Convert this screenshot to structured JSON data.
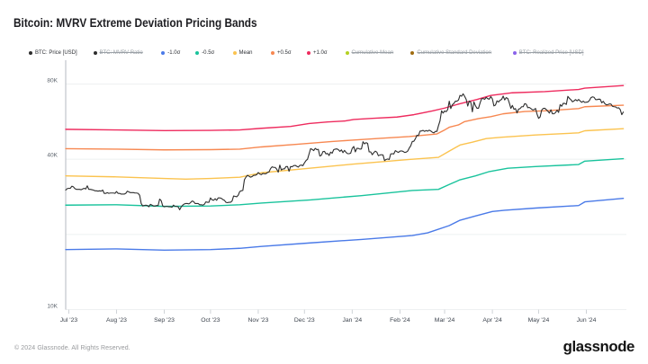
{
  "header": {
    "title": "Bitcoin: MVRV Extreme Deviation Pricing Bands"
  },
  "legend": {
    "items": [
      {
        "label": "BTC: Price [USD]",
        "color": "#2d2d2d",
        "active": true
      },
      {
        "label": "BTC: MVRV Ratio",
        "color": "#2d2d2d",
        "active": false
      },
      {
        "label": "-1.0σ",
        "color": "#4a7ae8",
        "active": true
      },
      {
        "label": "-0.5σ",
        "color": "#19c39c",
        "active": true
      },
      {
        "label": "Mean",
        "color": "#fbc34f",
        "active": true
      },
      {
        "label": "+0.5σ",
        "color": "#f78851",
        "active": true
      },
      {
        "label": "+1.0σ",
        "color": "#ee2b5e",
        "active": true
      },
      {
        "label": "Cumulative Mean",
        "color": "#b4d122",
        "active": false
      },
      {
        "label": "Cumulative Standard Deviation",
        "color": "#a06c10",
        "active": false
      },
      {
        "label": "BTC: Realized Price [USD]",
        "color": "#8a63ea",
        "active": false
      }
    ]
  },
  "footer": {
    "copyright": "© 2024 Glassnode. All Rights Reserved.",
    "brand": "glassnode"
  },
  "chart_data": {
    "type": "line",
    "title": "Bitcoin: MVRV Extreme Deviation Pricing Bands",
    "y_axis": {
      "scale": "log",
      "unit": "USD thousands",
      "ticks": [
        {
          "v": 80,
          "label": "80K"
        },
        {
          "v": 40,
          "label": "40K"
        },
        {
          "v": 10,
          "label": "10K"
        }
      ],
      "gridlines": [
        80,
        40,
        20,
        10
      ],
      "range": [
        10,
        86
      ]
    },
    "x_axis": {
      "start": "2023-06-29",
      "end": "2024-06-27",
      "month_labels": [
        {
          "d": "2023-07-01",
          "label": "Jul '23"
        },
        {
          "d": "2023-08-01",
          "label": "Aug '23"
        },
        {
          "d": "2023-09-01",
          "label": "Sep '23"
        },
        {
          "d": "2023-10-01",
          "label": "Oct '23"
        },
        {
          "d": "2023-11-01",
          "label": "Nov '23"
        },
        {
          "d": "2023-12-01",
          "label": "Dec '23"
        },
        {
          "d": "2024-01-01",
          "label": "Jan '24"
        },
        {
          "d": "2024-02-01",
          "label": "Feb '24"
        },
        {
          "d": "2024-03-01",
          "label": "Mar '24"
        },
        {
          "d": "2024-04-01",
          "label": "Apr '24"
        },
        {
          "d": "2024-05-01",
          "label": "May '24"
        },
        {
          "d": "2024-06-01",
          "label": "Jun '24"
        }
      ]
    },
    "series": [
      {
        "name": "+1.0σ",
        "color": "#ee2b5e",
        "width": 1.4,
        "points": [
          [
            "2023-06-29",
            52.7
          ],
          [
            "2023-08-01",
            52.4
          ],
          [
            "2023-09-01",
            52.1
          ],
          [
            "2023-10-01",
            52.2
          ],
          [
            "2023-10-20",
            52.4
          ],
          [
            "2023-11-03",
            53.2
          ],
          [
            "2023-11-22",
            54.1
          ],
          [
            "2023-12-04",
            55.6
          ],
          [
            "2023-12-16",
            56.4
          ],
          [
            "2023-12-27",
            56.9
          ],
          [
            "2024-01-02",
            57.7
          ],
          [
            "2024-01-14",
            58.3
          ],
          [
            "2024-01-30",
            59.0
          ],
          [
            "2024-02-10",
            60.3
          ],
          [
            "2024-02-22",
            62.4
          ],
          [
            "2024-03-01",
            64.1
          ],
          [
            "2024-03-10",
            66.5
          ],
          [
            "2024-03-22",
            69.4
          ],
          [
            "2024-03-31",
            72.0
          ],
          [
            "2024-04-14",
            73.8
          ],
          [
            "2024-05-05",
            74.6
          ],
          [
            "2024-05-27",
            76.1
          ],
          [
            "2024-05-31",
            77.0
          ],
          [
            "2024-06-25",
            78.9
          ]
        ]
      },
      {
        "name": "+0.5σ",
        "color": "#f78851",
        "width": 1.4,
        "points": [
          [
            "2023-06-29",
            44.1
          ],
          [
            "2023-08-01",
            43.9
          ],
          [
            "2023-09-01",
            43.6
          ],
          [
            "2023-10-01",
            43.7
          ],
          [
            "2023-10-20",
            43.9
          ],
          [
            "2023-11-03",
            44.8
          ],
          [
            "2023-11-26",
            45.9
          ],
          [
            "2023-12-19",
            47.1
          ],
          [
            "2024-01-01",
            47.7
          ],
          [
            "2024-01-19",
            48.5
          ],
          [
            "2024-02-07",
            49.3
          ],
          [
            "2024-02-25",
            50.5
          ],
          [
            "2024-03-01",
            52.4
          ],
          [
            "2024-03-04",
            53.7
          ],
          [
            "2024-03-10",
            54.9
          ],
          [
            "2024-03-14",
            56.6
          ],
          [
            "2024-03-23",
            58.2
          ],
          [
            "2024-03-31",
            59.2
          ],
          [
            "2024-04-08",
            60.8
          ],
          [
            "2024-04-22",
            62.1
          ],
          [
            "2024-05-05",
            62.5
          ],
          [
            "2024-05-27",
            63.8
          ],
          [
            "2024-05-31",
            64.9
          ],
          [
            "2024-06-25",
            65.8
          ]
        ]
      },
      {
        "name": "Mean",
        "color": "#fbc34f",
        "width": 1.4,
        "points": [
          [
            "2023-06-29",
            34.3
          ],
          [
            "2023-08-01",
            34.0
          ],
          [
            "2023-09-01",
            33.5
          ],
          [
            "2023-09-15",
            33.3
          ],
          [
            "2023-10-01",
            33.5
          ],
          [
            "2023-10-20",
            33.9
          ],
          [
            "2023-11-03",
            35.3
          ],
          [
            "2023-12-02",
            36.7
          ],
          [
            "2024-01-01",
            38.2
          ],
          [
            "2024-02-07",
            39.9
          ],
          [
            "2024-02-26",
            40.7
          ],
          [
            "2024-03-04",
            43.1
          ],
          [
            "2024-03-11",
            45.6
          ],
          [
            "2024-03-19",
            46.8
          ],
          [
            "2024-03-28",
            48.4
          ],
          [
            "2024-04-07",
            49.0
          ],
          [
            "2024-04-29",
            50.0
          ],
          [
            "2024-05-27",
            51.0
          ],
          [
            "2024-05-31",
            52.0
          ],
          [
            "2024-06-25",
            53.0
          ]
        ]
      },
      {
        "name": "-0.5σ",
        "color": "#19c39c",
        "width": 1.4,
        "points": [
          [
            "2023-06-29",
            26.2
          ],
          [
            "2023-08-01",
            26.3
          ],
          [
            "2023-09-01",
            25.9
          ],
          [
            "2023-10-01",
            26.0
          ],
          [
            "2023-10-20",
            26.3
          ],
          [
            "2023-11-03",
            26.7
          ],
          [
            "2023-12-05",
            27.5
          ],
          [
            "2024-01-07",
            28.6
          ],
          [
            "2024-02-09",
            30.0
          ],
          [
            "2024-02-26",
            30.3
          ],
          [
            "2024-03-04",
            31.7
          ],
          [
            "2024-03-11",
            33.1
          ],
          [
            "2024-03-21",
            34.3
          ],
          [
            "2024-03-30",
            35.7
          ],
          [
            "2024-04-11",
            36.8
          ],
          [
            "2024-04-29",
            37.4
          ],
          [
            "2024-05-27",
            38.1
          ],
          [
            "2024-05-31",
            39.3
          ],
          [
            "2024-06-25",
            40.2
          ]
        ]
      },
      {
        "name": "-1.0σ",
        "color": "#4a7ae8",
        "width": 1.4,
        "points": [
          [
            "2023-06-29",
            17.4
          ],
          [
            "2023-08-01",
            17.5
          ],
          [
            "2023-09-01",
            17.3
          ],
          [
            "2023-10-01",
            17.4
          ],
          [
            "2023-10-20",
            17.6
          ],
          [
            "2023-11-03",
            17.9
          ],
          [
            "2023-12-05",
            18.5
          ],
          [
            "2024-01-07",
            19.1
          ],
          [
            "2024-02-09",
            19.8
          ],
          [
            "2024-02-19",
            20.3
          ],
          [
            "2024-03-04",
            21.7
          ],
          [
            "2024-03-11",
            22.8
          ],
          [
            "2024-03-21",
            23.7
          ],
          [
            "2024-04-01",
            24.7
          ],
          [
            "2024-04-09",
            25.0
          ],
          [
            "2024-04-29",
            25.5
          ],
          [
            "2024-05-27",
            26.1
          ],
          [
            "2024-05-31",
            27.0
          ],
          [
            "2024-06-25",
            27.9
          ]
        ]
      },
      {
        "name": "BTC: Price [USD]",
        "color": "#2d2d2d",
        "width": 1.1,
        "daily_start": "2023-06-29",
        "values": [
          30.1,
          30.5,
          30.6,
          30.6,
          31.2,
          31.0,
          30.5,
          30.3,
          30.3,
          30.3,
          30.2,
          30.4,
          30.6,
          30.4,
          31.3,
          30.3,
          30.3,
          30.2,
          30.1,
          29.9,
          29.9,
          29.8,
          29.9,
          29.8,
          30.1,
          29.2,
          29.2,
          29.4,
          29.2,
          29.3,
          29.3,
          29.3,
          29.2,
          29.7,
          29.2,
          29.2,
          29.0,
          29.0,
          29.0,
          29.2,
          29.8,
          29.6,
          29.4,
          29.4,
          29.4,
          29.3,
          29.3,
          29.2,
          28.7,
          26.6,
          26.0,
          26.1,
          26.2,
          26.1,
          25.8,
          26.4,
          26.2,
          26.0,
          26.0,
          26.1,
          26.1,
          27.7,
          27.3,
          26.0,
          25.8,
          25.9,
          25.9,
          25.8,
          25.8,
          25.7,
          26.2,
          25.9,
          25.9,
          25.8,
          25.1,
          25.8,
          26.2,
          26.5,
          26.6,
          26.6,
          26.5,
          26.8,
          27.2,
          27.1,
          26.6,
          26.6,
          26.6,
          26.3,
          26.3,
          26.2,
          26.4,
          27.0,
          26.9,
          26.9,
          28.0,
          27.5,
          27.4,
          27.8,
          27.4,
          28.0,
          28.0,
          27.9,
          27.6,
          27.4,
          26.9,
          26.8,
          26.9,
          26.9,
          27.2,
          28.5,
          28.4,
          28.3,
          28.7,
          29.7,
          29.9,
          30.0,
          33.1,
          33.9,
          34.5,
          34.2,
          33.9,
          34.1,
          34.5,
          34.5,
          34.7,
          35.4,
          34.9,
          34.7,
          35.1,
          35.0,
          35.0,
          35.4,
          35.6,
          36.7,
          37.3,
          37.1,
          37.1,
          36.5,
          35.5,
          37.9,
          36.2,
          36.6,
          36.6,
          37.4,
          37.4,
          35.8,
          37.4,
          37.3,
          37.7,
          37.8,
          37.5,
          37.2,
          37.8,
          37.9,
          37.7,
          38.7,
          39.5,
          40.0,
          42.0,
          44.1,
          43.8,
          43.3,
          44.2,
          43.7,
          43.8,
          41.2,
          41.5,
          42.9,
          43.0,
          42.0,
          42.2,
          41.4,
          42.7,
          42.3,
          43.7,
          43.9,
          44.0,
          43.7,
          43.0,
          43.6,
          42.5,
          43.4,
          42.6,
          42.1,
          42.1,
          42.3,
          44.2,
          45.0,
          42.8,
          44.2,
          44.2,
          43.9,
          44.0,
          47.0,
          46.1,
          46.6,
          46.3,
          42.8,
          42.8,
          41.7,
          42.5,
          43.1,
          42.7,
          41.3,
          41.6,
          41.7,
          41.6,
          39.5,
          39.9,
          40.1,
          39.9,
          42.0,
          42.1,
          42.0,
          43.3,
          42.9,
          42.6,
          43.1,
          43.2,
          43.0,
          42.6,
          42.7,
          43.1,
          44.3,
          45.3,
          47.1,
          47.2,
          48.3,
          49.9,
          49.7,
          51.8,
          51.9,
          52.2,
          51.7,
          52.1,
          51.8,
          52.3,
          51.9,
          51.3,
          51.0,
          51.7,
          51.7,
          54.5,
          57.0,
          62.5,
          61.2,
          62.4,
          62.0,
          63.2,
          68.3,
          63.8,
          66.1,
          66.9,
          68.3,
          68.3,
          69.0,
          72.1,
          71.5,
          73.1,
          71.4,
          69.4,
          65.3,
          68.4,
          67.6,
          61.9,
          67.9,
          65.5,
          64.0,
          64.0,
          67.2,
          69.9,
          70.0,
          69.5,
          70.8,
          69.9,
          69.6,
          71.3,
          69.7,
          65.4,
          65.9,
          68.5,
          67.8,
          68.9,
          69.4,
          71.6,
          69.1,
          70.6,
          70.0,
          67.2,
          63.9,
          65.7,
          63.4,
          63.8,
          61.3,
          63.5,
          63.8,
          64.9,
          64.9,
          66.8,
          66.4,
          64.3,
          64.5,
          63.8,
          63.1,
          63.1,
          63.9,
          60.6,
          58.3,
          59.1,
          62.9,
          63.9,
          64.0,
          63.2,
          62.3,
          61.2,
          63.1,
          60.8,
          60.8,
          61.5,
          62.9,
          61.6,
          66.2,
          65.2,
          67.0,
          66.9,
          66.3,
          71.4,
          70.1,
          69.2,
          67.9,
          68.5,
          69.3,
          68.5,
          69.4,
          68.4,
          67.6,
          68.3,
          67.5,
          67.7,
          67.8,
          68.8,
          70.6,
          71.1,
          70.8,
          69.3,
          69.3,
          69.6,
          69.5,
          67.3,
          68.2,
          66.8,
          66.0,
          66.2,
          66.6,
          66.5,
          65.1,
          64.9,
          64.8,
          64.1,
          64.3,
          63.2,
          60.3,
          61.8
        ]
      }
    ],
    "legend_position": "top",
    "grid": "horizontal-only"
  }
}
